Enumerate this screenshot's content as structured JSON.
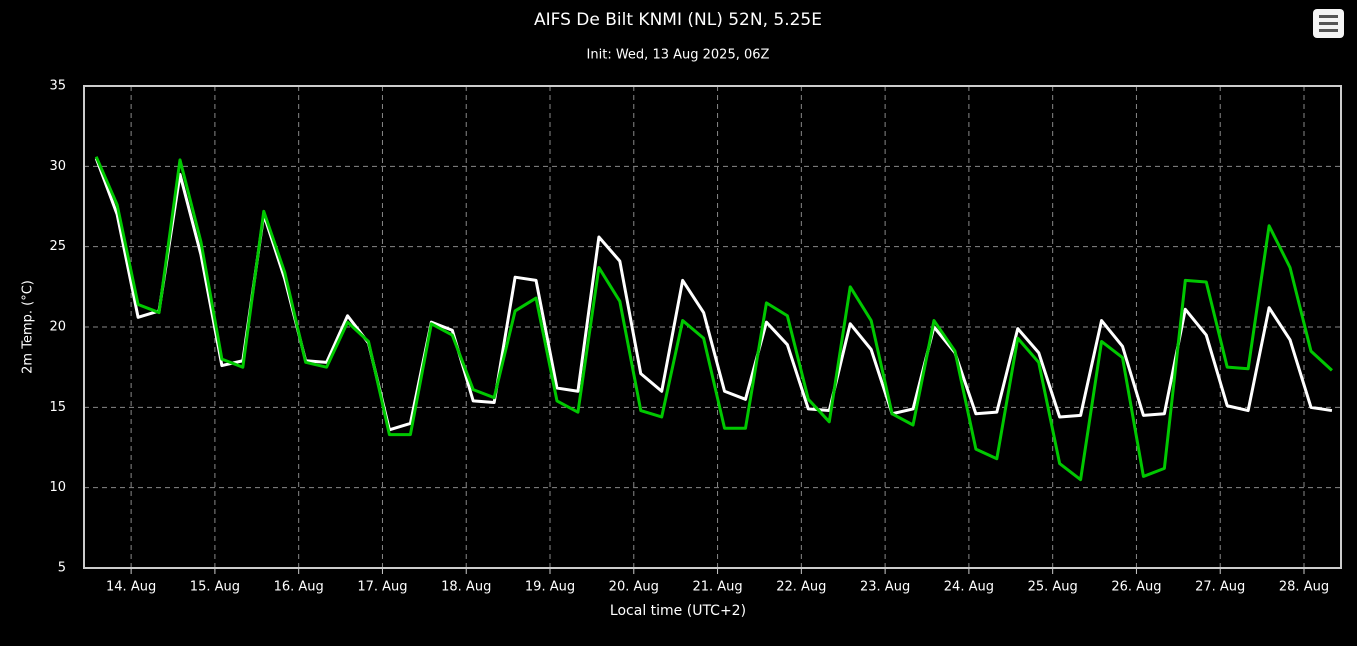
{
  "chart_data": {
    "type": "line",
    "title": "AIFS De Bilt KNMI (NL) 52N, 5.25E",
    "subtitle": "Init: Wed, 13 Aug 2025, 06Z",
    "ylabel": "2m Temp. (°C)",
    "xlabel": "Local time (UTC+2)",
    "x": [
      14,
      20,
      26,
      32,
      38,
      44,
      50,
      56,
      62,
      68,
      74,
      80,
      86,
      92,
      98,
      104,
      110,
      116,
      122,
      128,
      134,
      140,
      146,
      152,
      158,
      164,
      170,
      176,
      182,
      188,
      194,
      200,
      206,
      212,
      218,
      224,
      230,
      236,
      242,
      248,
      254,
      260,
      266,
      272,
      278,
      284,
      290,
      296,
      302,
      308,
      314,
      320,
      326,
      332,
      338,
      344,
      350,
      356,
      362,
      368
    ],
    "series": [
      {
        "color": "#ffffff",
        "values": [
          30.5,
          27.0,
          20.6,
          21.0,
          29.5,
          24.5,
          17.6,
          17.9,
          27.0,
          23.0,
          17.9,
          17.8,
          20.7,
          19.0,
          13.6,
          14.0,
          20.3,
          19.8,
          15.4,
          15.3,
          23.1,
          22.9,
          16.2,
          16.0,
          25.6,
          24.1,
          17.1,
          16.0,
          22.9,
          20.9,
          16.0,
          15.5,
          20.3,
          18.9,
          14.9,
          14.8,
          20.2,
          18.6,
          14.6,
          14.9,
          20.0,
          18.4,
          14.6,
          14.7,
          19.9,
          18.4,
          14.4,
          14.5,
          20.4,
          18.8,
          14.5,
          14.6,
          21.1,
          19.5,
          15.1,
          14.8,
          21.2,
          19.2,
          15.0,
          14.8
        ]
      },
      {
        "color": "#00c800",
        "values": [
          30.6,
          27.6,
          21.4,
          20.9,
          30.4,
          25.3,
          18.0,
          17.5,
          27.2,
          23.4,
          17.8,
          17.5,
          20.3,
          19.1,
          13.3,
          13.3,
          20.2,
          19.5,
          16.1,
          15.6,
          21.0,
          21.8,
          15.4,
          14.7,
          23.7,
          21.6,
          14.8,
          14.4,
          20.4,
          19.3,
          13.7,
          13.7,
          21.5,
          20.7,
          15.5,
          14.1,
          22.5,
          20.4,
          14.6,
          13.9,
          20.4,
          18.5,
          12.4,
          11.8,
          19.3,
          17.8,
          11.5,
          10.5,
          19.1,
          18.1,
          10.7,
          11.2,
          22.9,
          22.8,
          17.5,
          17.4,
          26.3,
          23.7,
          18.5,
          17.3
        ]
      }
    ],
    "xlim": [
      10.5,
      370.6
    ],
    "xticks": [
      {
        "value": 24,
        "label": "14. Aug"
      },
      {
        "value": 48,
        "label": "15. Aug"
      },
      {
        "value": 72,
        "label": "16. Aug"
      },
      {
        "value": 96,
        "label": "17. Aug"
      },
      {
        "value": 120,
        "label": "18. Aug"
      },
      {
        "value": 144,
        "label": "19. Aug"
      },
      {
        "value": 168,
        "label": "20. Aug"
      },
      {
        "value": 192,
        "label": "21. Aug"
      },
      {
        "value": 216,
        "label": "22. Aug"
      },
      {
        "value": 240,
        "label": "23. Aug"
      },
      {
        "value": 264,
        "label": "24. Aug"
      },
      {
        "value": 288,
        "label": "25. Aug"
      },
      {
        "value": 312,
        "label": "26. Aug"
      },
      {
        "value": 336,
        "label": "27. Aug"
      },
      {
        "value": 360,
        "label": "28. Aug"
      }
    ],
    "ylim": [
      5,
      35
    ],
    "yticks": [
      5,
      10,
      15,
      20,
      25,
      30,
      35
    ],
    "grid": true
  }
}
